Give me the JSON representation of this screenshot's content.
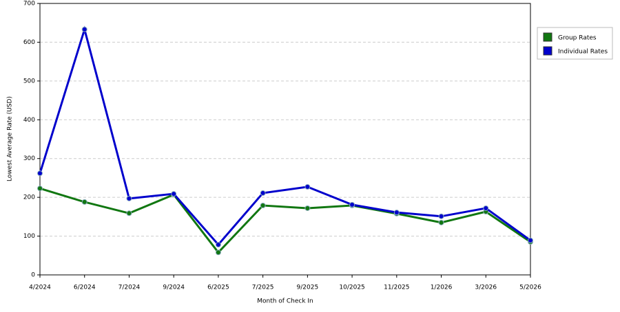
{
  "chart_data": {
    "type": "line",
    "x_label": "Month of Check In",
    "y_label": "Lowest Average Rate (USD)",
    "categories": [
      "4/2024",
      "6/2024",
      "7/2024",
      "9/2024",
      "6/2025",
      "7/2025",
      "9/2025",
      "10/2025",
      "11/2025",
      "1/2026",
      "3/2026",
      "5/2026"
    ],
    "series": [
      {
        "name": "Group Rates",
        "color": "#117711",
        "values": [
          223,
          188,
          159,
          207,
          58,
          179,
          172,
          179,
          158,
          135,
          163,
          85
        ]
      },
      {
        "name": "Individual Rates",
        "color": "#0000cc",
        "values": [
          262,
          633,
          197,
          209,
          78,
          211,
          227,
          181,
          161,
          151,
          172,
          89
        ]
      }
    ],
    "ylim": [
      0,
      700
    ],
    "yticks": [
      0,
      100,
      200,
      300,
      400,
      500,
      600,
      700
    ],
    "grid": true,
    "legend": "right"
  }
}
